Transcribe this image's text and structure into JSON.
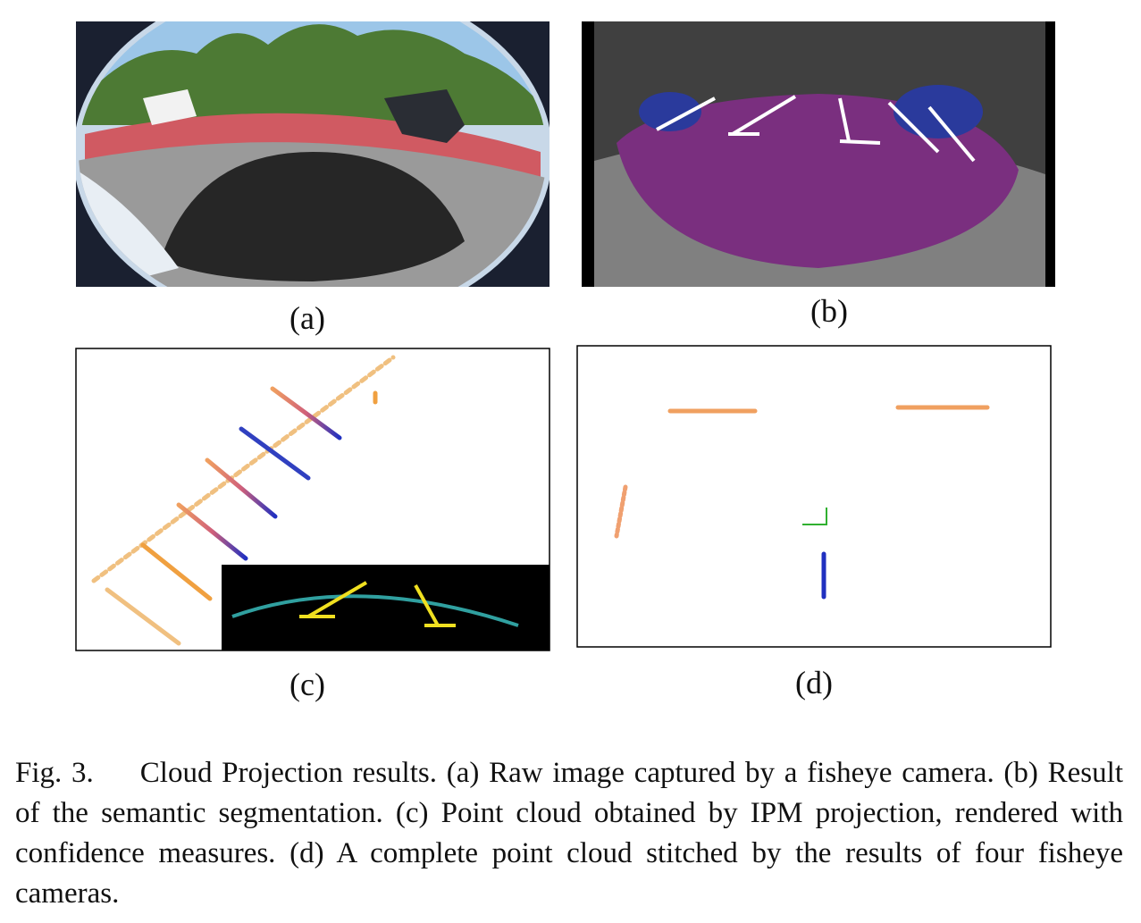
{
  "figure": {
    "panels": [
      {
        "label": "(a)"
      },
      {
        "label": "(b)"
      },
      {
        "label": "(c)"
      },
      {
        "label": "(d)"
      }
    ],
    "caption": {
      "label": "Fig. 3.",
      "text": "Cloud Projection results. (a) Raw image captured by a fisheye camera. (b) Result of the semantic segmentation. (c) Point cloud obtained by IPM projection, rendered with confidence measures. (d) A complete point cloud stitched by the results of four fisheye cameras."
    }
  }
}
